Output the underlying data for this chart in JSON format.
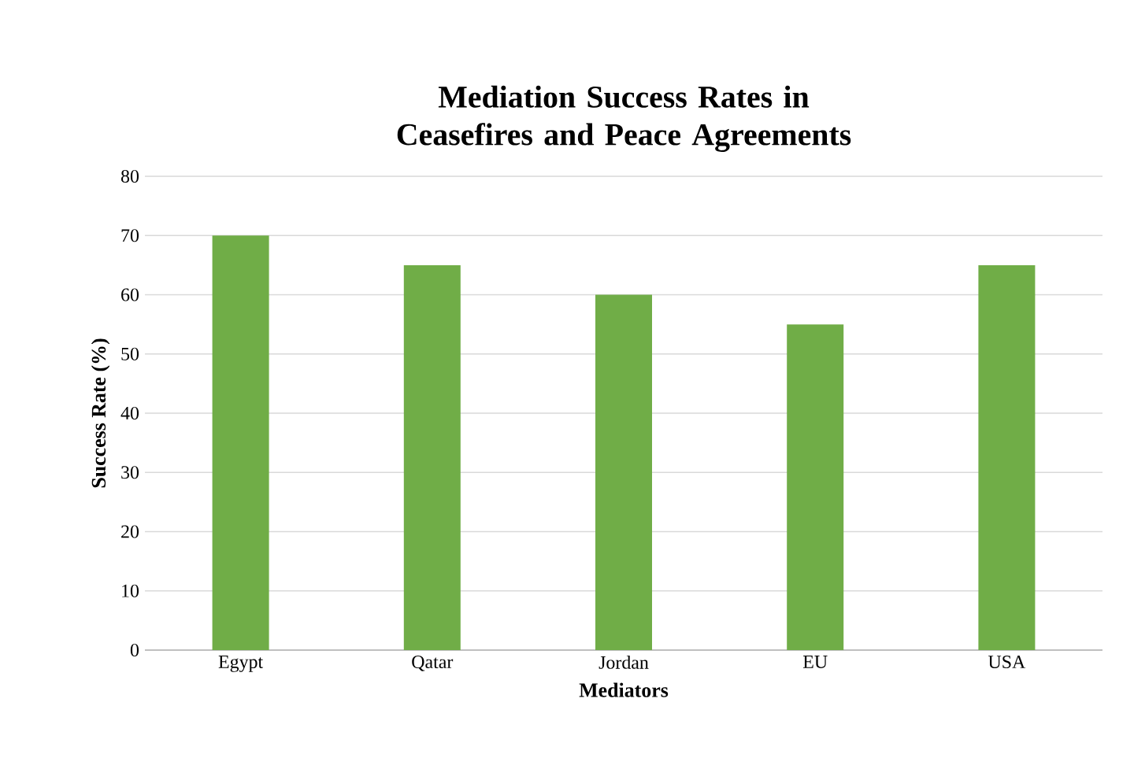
{
  "chart_data": {
    "type": "bar",
    "title": "Mediation Success Rates in Ceasefires and Peace Agreements",
    "xlabel": "Mediators",
    "ylabel": "Success Rate (%)",
    "categories": [
      "Egypt",
      "Qatar",
      "Jordan",
      "EU",
      "USA"
    ],
    "values": [
      70,
      65,
      60,
      55,
      65
    ],
    "color": "#70ad47",
    "ylim": [
      0,
      80
    ],
    "yticks": [
      0,
      10,
      20,
      30,
      40,
      50,
      60,
      70,
      80
    ],
    "grid": "y"
  }
}
